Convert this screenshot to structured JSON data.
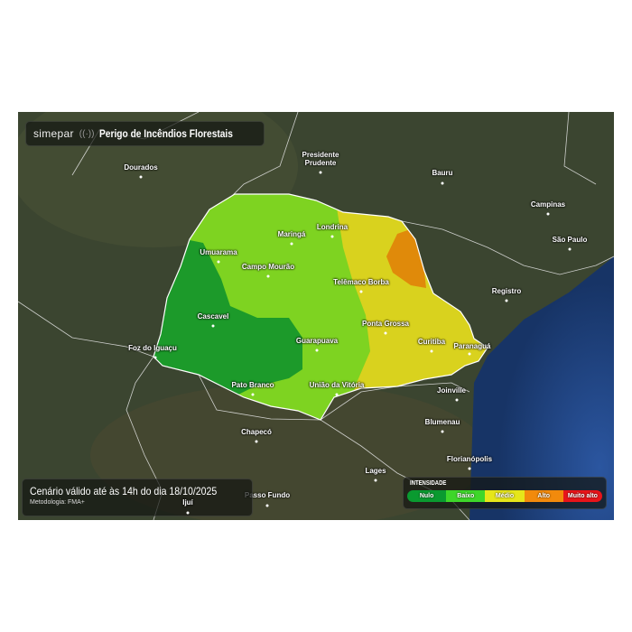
{
  "header": {
    "brand": "simepar",
    "brand_icon": "signal-waves-icon",
    "title": "Perigo de Incêndios Florestais"
  },
  "footer": {
    "valid_text": "Cenário válido até às 14h do dia 18/10/2025",
    "methodology": "Metodologia: FMA+"
  },
  "legend": {
    "title": "INTENSIDADE",
    "items": [
      {
        "label": "Nulo",
        "color": "#0a9a30"
      },
      {
        "label": "Baixo",
        "color": "#3ed62a"
      },
      {
        "label": "Médio",
        "color": "#e6e61a"
      },
      {
        "label": "Alto",
        "color": "#f28a0c"
      },
      {
        "label": "Muito alto",
        "color": "#e8141a"
      }
    ]
  },
  "map_colors": {
    "nulo": "#1c9a2a",
    "baixo": "#7ed321",
    "medio": "#d9d21e",
    "alto": "#e08a0a",
    "ocean": "#1e3f78"
  },
  "cities": [
    "Dourados",
    "Presidente Prudente",
    "Bauru",
    "Campinas",
    "São Paulo",
    "Registro",
    "Londrina",
    "Maringá",
    "Umuarama",
    "Campo Mourão",
    "Telêmaco Borba",
    "Cascavel",
    "Foz do Iguaçu",
    "Ponta Grossa",
    "Guarapuava",
    "Curitiba",
    "Paranaguá",
    "Pato Branco",
    "União da Vitória",
    "Joinville",
    "Chapecó",
    "Blumenau",
    "Florianópolis",
    "Lages",
    "Passo Fundo",
    "Ijuí"
  ]
}
